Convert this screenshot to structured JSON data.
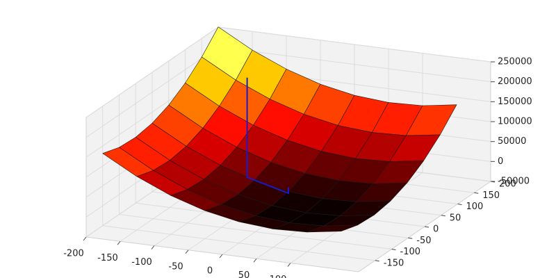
{
  "chart_data": {
    "type": "surface",
    "x": [
      -200,
      -150,
      -100,
      -50,
      0,
      50,
      100,
      150
    ],
    "y": [
      -150,
      -100,
      -50,
      0,
      50,
      100,
      150,
      200
    ],
    "z": [
      [
        131400,
        84400,
        47400,
        20400,
        3400,
        -3600,
        -600,
        12400
      ],
      [
        118400,
        71400,
        34400,
        7400,
        -9600,
        -16600,
        -13600,
        -600
      ],
      [
        115400,
        68400,
        31400,
        4400,
        -12600,
        -19600,
        -16600,
        -3600
      ],
      [
        122400,
        75400,
        38400,
        11400,
        -5600,
        -12600,
        -9600,
        3400
      ],
      [
        139400,
        92400,
        55400,
        28400,
        11400,
        4400,
        7400,
        20400
      ],
      [
        166400,
        119400,
        82400,
        55400,
        38400,
        31400,
        34400,
        47400
      ],
      [
        203400,
        156400,
        119400,
        92400,
        75400,
        68400,
        71400,
        84400
      ],
      [
        250400,
        203400,
        166400,
        139400,
        122400,
        115400,
        118400,
        131400
      ]
    ],
    "colormap": "hot",
    "edgecolor": "#1a1a1a",
    "pane_color": "#f2f2f2",
    "grid": true,
    "xlim": [
      -200,
      200
    ],
    "ylim": [
      -200,
      200
    ],
    "zlim": [
      -50000,
      250000
    ],
    "xticks": [
      -200,
      -150,
      -100,
      -50,
      0,
      50,
      100
    ],
    "yticks": [
      -150,
      -100,
      -50,
      0,
      50,
      100,
      150,
      200
    ],
    "zticks": [
      -50000,
      0,
      50000,
      100000,
      150000,
      200000,
      250000
    ],
    "lines": [
      {
        "color": "#1a1acc",
        "x": [
          -80,
          -80,
          0,
          0
        ],
        "y": [
          40,
          40,
          0,
          0
        ],
        "z": [
          240000,
          -10000,
          -10000,
          5000
        ]
      }
    ]
  }
}
